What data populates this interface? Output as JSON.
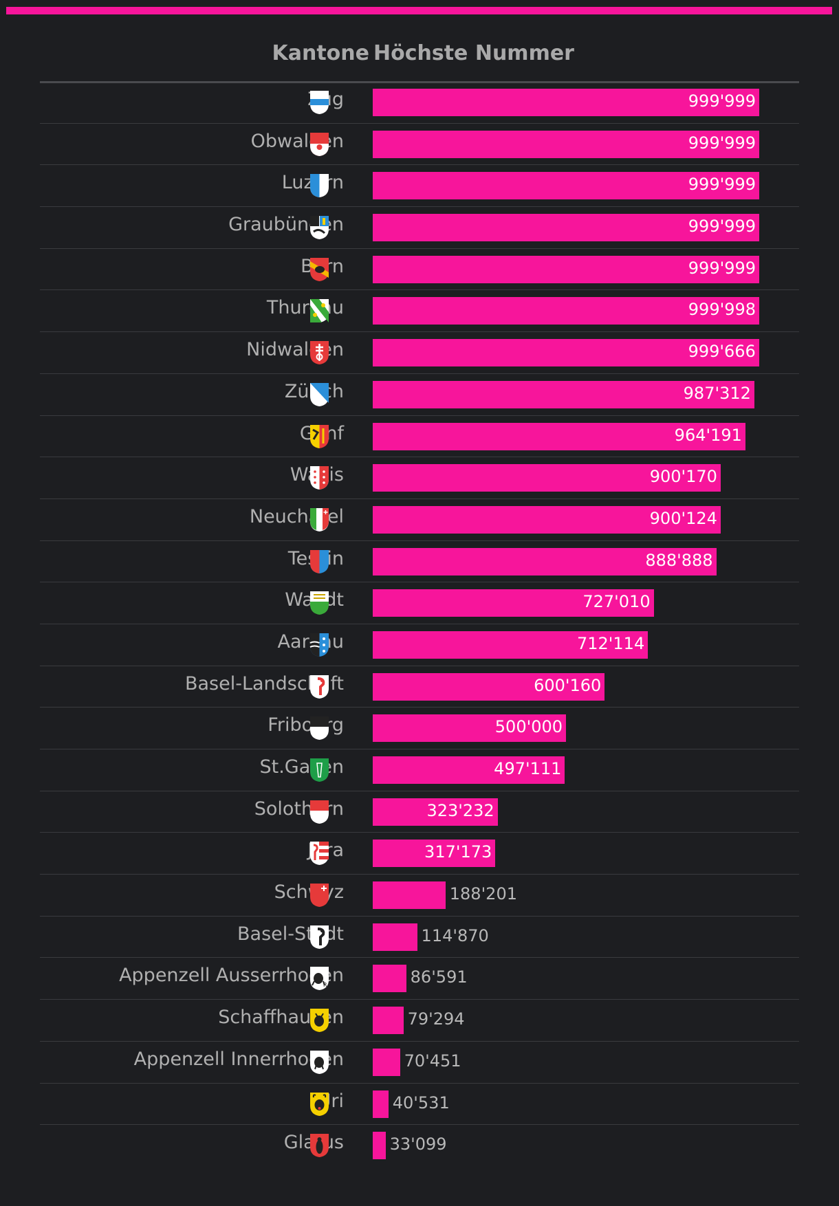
{
  "header": {
    "col_cantons": "Kantone",
    "col_number": "Höchste Nummer"
  },
  "colors": {
    "accent": "#f7159b",
    "background": "#1d1e21",
    "text": "#b0b0b0"
  },
  "chart_data": {
    "type": "bar",
    "orientation": "horizontal",
    "title": "",
    "xlabel": "Höchste Nummer",
    "ylabel": "Kantone",
    "xlim": [
      0,
      1000000
    ],
    "categories": [
      "Zug",
      "Obwalden",
      "Luzern",
      "Graubünden",
      "Bern",
      "Thurgau",
      "Nidwalden",
      "Zürich",
      "Genf",
      "Wallis",
      "Neuchatel",
      "Tessin",
      "Waadt",
      "Aargau",
      "Basel-Landschaft",
      "Fribourg",
      "St.Gallen",
      "Solothurn",
      "Jura",
      "Schwyz",
      "Basel-Stadt",
      "Appenzell Ausserrhoden",
      "Schaffhausen",
      "Appenzell Innerrhoden",
      "Uri",
      "Glarus"
    ],
    "values": [
      999999,
      999999,
      999999,
      999999,
      999999,
      999998,
      999666,
      987312,
      964191,
      900170,
      900124,
      888888,
      727010,
      712114,
      600160,
      500000,
      497111,
      323232,
      317173,
      188201,
      114870,
      86591,
      79294,
      70451,
      40531,
      33099
    ],
    "labels": [
      "999'999",
      "999'999",
      "999'999",
      "999'999",
      "999'999",
      "999'998",
      "999'666",
      "987'312",
      "964'191",
      "900'170",
      "900'124",
      "888'888",
      "727'010",
      "712'114",
      "600'160",
      "500'000",
      "497'111",
      "323'232",
      "317'173",
      "188'201",
      "114'870",
      "86'591",
      "79'294",
      "70'451",
      "40'531",
      "33'099"
    ],
    "crests": [
      "zug-crest",
      "obwalden-crest",
      "luzern-crest",
      "graubuenden-crest",
      "bern-crest",
      "thurgau-crest",
      "nidwalden-crest",
      "zuerich-crest",
      "genf-crest",
      "wallis-crest",
      "neuchatel-crest",
      "tessin-crest",
      "waadt-crest",
      "aargau-crest",
      "basel-landschaft-crest",
      "fribourg-crest",
      "st-gallen-crest",
      "solothurn-crest",
      "jura-crest",
      "schwyz-crest",
      "basel-stadt-crest",
      "appenzell-ausserrhoden-crest",
      "schaffhausen-crest",
      "appenzell-innerrhoden-crest",
      "uri-crest",
      "glarus-crest"
    ]
  }
}
